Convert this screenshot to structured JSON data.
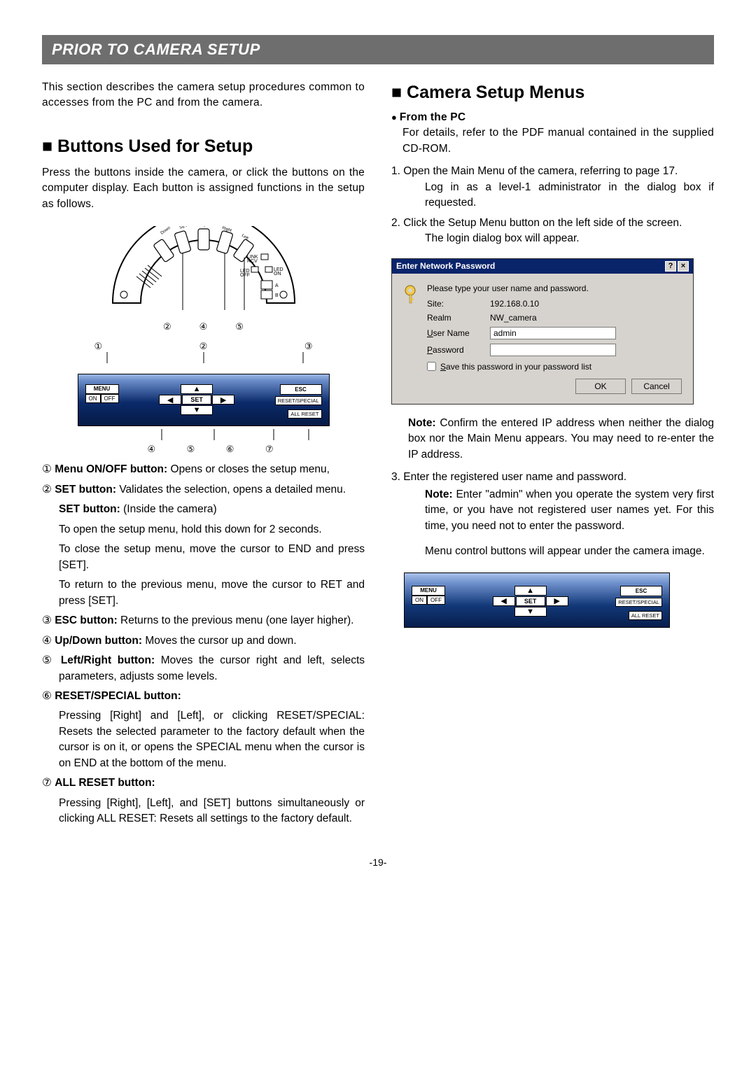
{
  "banner": "PRIOR TO CAMERA SETUP",
  "intro": "This section describes the camera setup procedures common to accesses from the PC and from the camera.",
  "left": {
    "h2": "Buttons Used for Setup",
    "p1": "Press the buttons inside the camera, or click the buttons on the computer display. Each button is assigned functions in the setup as follows.",
    "arch": {
      "labels": [
        "Down",
        "SET",
        "Up",
        "Right",
        "Left"
      ],
      "link": "LINK\nRCV",
      "led": "LED\nOFF",
      "led2": "LED\nON",
      "ab": [
        "A",
        "B"
      ]
    },
    "panel": {
      "menu": "MENU",
      "on": "ON",
      "off": "OFF",
      "set": "SET",
      "esc": "ESC",
      "reset": "RESET/SPECIAL",
      "allreset": "ALL RESET",
      "nums_top": [
        "②",
        "④",
        "⑤"
      ],
      "nums_row1": [
        "①",
        "②",
        "③"
      ],
      "nums_row2": [
        "④",
        "⑤",
        "⑥",
        "⑦"
      ]
    },
    "items": [
      {
        "n": "①",
        "title": "Menu ON/OFF button:",
        "rest": " Opens or closes the setup menu,"
      },
      {
        "n": "②",
        "title": "SET button:",
        "rest": " Validates the selection, opens a detailed menu."
      },
      {
        "sub": true,
        "title": "SET button:",
        "rest": " (Inside the camera)"
      },
      {
        "plain": "To open the setup menu, hold this down for 2 seconds."
      },
      {
        "plain": "To close the setup menu, move the cursor to END and press [SET]."
      },
      {
        "plain": "To return to the previous menu, move the cursor to RET and press [SET]."
      },
      {
        "n": "③",
        "title": "ESC button:",
        "rest": " Returns to the previous menu (one layer higher)."
      },
      {
        "n": "④",
        "title": "Up/Down button:",
        "rest": " Moves the cursor up and down."
      },
      {
        "n": "⑤",
        "title": "Left/Right button:",
        "rest": " Moves the cursor right and left, selects parameters, adjusts some levels."
      },
      {
        "n": "⑥",
        "title": "RESET/SPECIAL button:",
        "rest": ""
      },
      {
        "plain": "Pressing [Right] and [Left], or clicking RESET/SPECIAL: Resets the selected parameter to the factory default when the cursor is on it, or opens the SPECIAL menu when the cursor is on END at the bottom of the menu."
      },
      {
        "n": "⑦",
        "title": "ALL RESET button:",
        "rest": ""
      },
      {
        "plain": "Pressing [Right], [Left], and [SET] buttons simultaneously or clicking ALL RESET: Resets all settings to the factory default."
      }
    ]
  },
  "right": {
    "h2": "Camera Setup Menus",
    "fromPC": "From the PC",
    "p1": "For details, refer to the PDF manual contained in the supplied CD-ROM.",
    "steps": [
      {
        "n": "1.",
        "text": "Open the Main Menu of the camera, referring to page 17.",
        "extra": "Log in as a level-1 administrator in the dialog box if requested."
      },
      {
        "n": "2.",
        "text": "Click the Setup Menu button on the left side of the screen.",
        "extra": "The login dialog box will appear."
      }
    ],
    "dialog": {
      "title": "Enter Network Password",
      "msg": "Please type your user name and password.",
      "labels": {
        "site": "Site:",
        "realm": "Realm",
        "user": "User Name",
        "pass": "Password"
      },
      "site": "192.168.0.10",
      "realm": "NW_camera",
      "user": "admin",
      "password": "",
      "save": "Save this password in your password list",
      "ok": "OK",
      "cancel": "Cancel"
    },
    "note1": "Confirm the entered IP address when neither the dialog box nor the Main Menu appears. You may need to re-enter the IP address.",
    "step3n": "3.",
    "step3": "Enter the registered user name and password.",
    "note2": "Enter \"admin\" when you operate the system very first time, or you have not registered user names yet. For this time, you need not to enter the password.",
    "p3": "Menu control buttons will appear under the camera image."
  },
  "pagenum": "-19-"
}
